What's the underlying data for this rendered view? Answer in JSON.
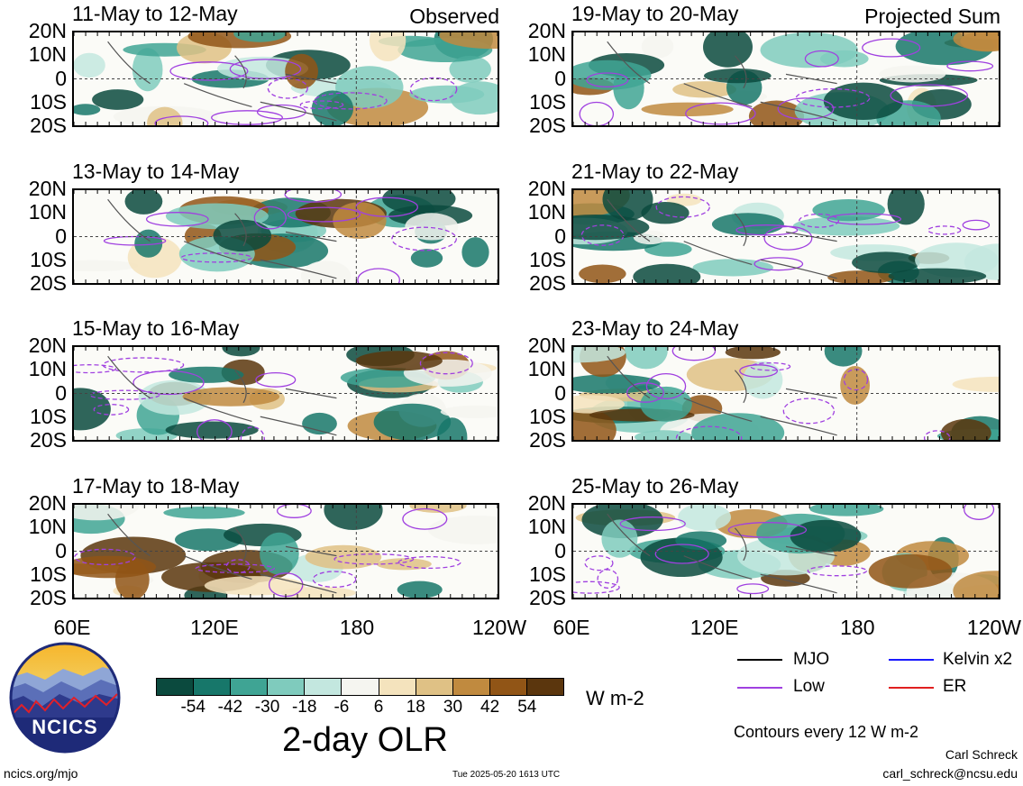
{
  "panels": {
    "left": [
      {
        "title": "11-May to 12-May",
        "tag": "Observed"
      },
      {
        "title": "13-May to 14-May",
        "tag": ""
      },
      {
        "title": "15-May to 16-May",
        "tag": ""
      },
      {
        "title": "17-May to 18-May",
        "tag": ""
      }
    ],
    "right": [
      {
        "title": "19-May to 20-May",
        "tag": "Projected Sum"
      },
      {
        "title": "21-May to 22-May",
        "tag": ""
      },
      {
        "title": "23-May to 24-May",
        "tag": ""
      },
      {
        "title": "25-May to 26-May",
        "tag": ""
      }
    ]
  },
  "lat_labels": [
    "20N",
    "10N",
    "0",
    "10S",
    "20S"
  ],
  "lon_labels": {
    "left": [
      "60E",
      "120E",
      "180",
      "120W"
    ],
    "right": [
      "60E",
      "120E",
      "180",
      "120W"
    ]
  },
  "colorbar": {
    "colors": [
      "#0b4a3e",
      "#17776a",
      "#3fa494",
      "#7fcbbd",
      "#c3e7df",
      "#f5f5f0",
      "#f4e3bd",
      "#dfc185",
      "#c08a3f",
      "#915516",
      "#5b360d"
    ],
    "ticks": [
      "-54",
      "-42",
      "-30",
      "-18",
      "-6",
      "6",
      "18",
      "30",
      "42",
      "54"
    ],
    "units": "W m-2",
    "title": "2-day OLR"
  },
  "legend": {
    "items": [
      {
        "label": "MJO",
        "color": "#000000"
      },
      {
        "label": "Kelvin x2",
        "color": "#1a1aff"
      },
      {
        "label": "Low",
        "color": "#a040e0"
      },
      {
        "label": "ER",
        "color": "#e02020"
      }
    ],
    "contour_note": "Contours every 12 W m-2"
  },
  "footer": {
    "logo_text": "NCICS",
    "site": "ncics.org/mjo",
    "timestamp": "Tue 2025-05-20 1613 UTC",
    "author": "Carl Schreck",
    "email": "carl_schreck@ncsu.edu"
  }
}
